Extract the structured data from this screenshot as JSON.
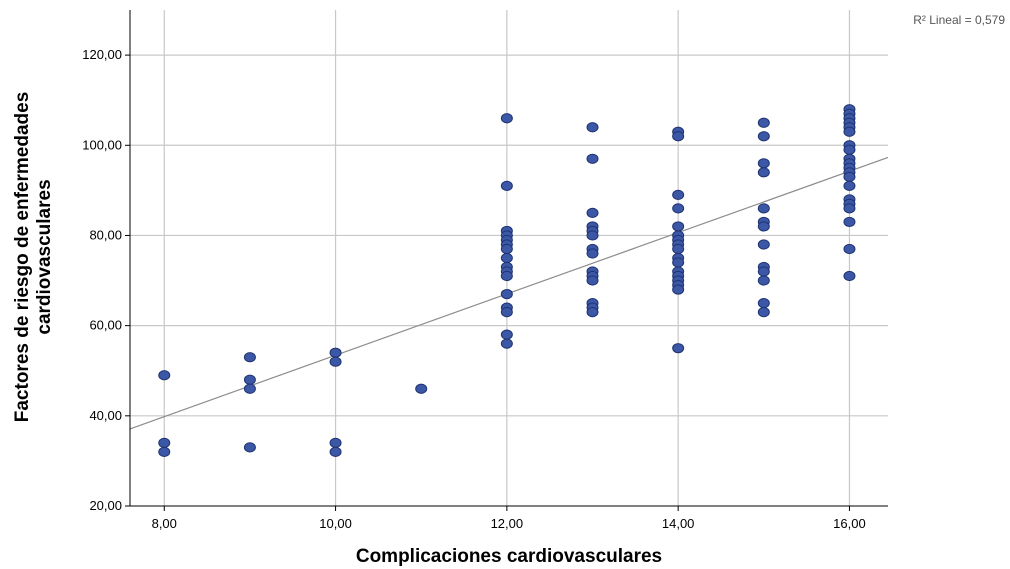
{
  "chart_data": {
    "type": "scatter",
    "xlabel": "Complicaciones cardiovasculares",
    "ylabel_lines": [
      "Factores de riesgo de enfermedades",
      "cardiovasculares"
    ],
    "xlim": [
      7.6,
      16.45
    ],
    "ylim": [
      20,
      130
    ],
    "x_ticks": [
      8,
      10,
      12,
      14,
      16
    ],
    "x_tick_labels": [
      "8,00",
      "10,00",
      "12,00",
      "14,00",
      "16,00"
    ],
    "y_ticks": [
      20,
      40,
      60,
      80,
      100,
      120
    ],
    "y_tick_labels": [
      "20,00",
      "40,00",
      "60,00",
      "80,00",
      "100,00",
      "120,00"
    ],
    "grid": true,
    "annotation": "R² Lineal = 0,579",
    "fit_line": {
      "x": [
        7.6,
        16.45
      ],
      "y": [
        37.1,
        97.3
      ]
    },
    "colors": {
      "marker_fill": "#3b57a6",
      "marker_stroke": "#1f3370",
      "grid": "#c8c8c8",
      "fit_line": "#8c8c8c",
      "axis": "#000000"
    },
    "points": [
      {
        "x": 8,
        "y": 49
      },
      {
        "x": 8,
        "y": 34
      },
      {
        "x": 8,
        "y": 32
      },
      {
        "x": 9,
        "y": 53
      },
      {
        "x": 9,
        "y": 48
      },
      {
        "x": 9,
        "y": 46
      },
      {
        "x": 9,
        "y": 33
      },
      {
        "x": 10,
        "y": 54
      },
      {
        "x": 10,
        "y": 52
      },
      {
        "x": 10,
        "y": 34
      },
      {
        "x": 10,
        "y": 32
      },
      {
        "x": 11,
        "y": 46
      },
      {
        "x": 12,
        "y": 106
      },
      {
        "x": 12,
        "y": 91
      },
      {
        "x": 12,
        "y": 81
      },
      {
        "x": 12,
        "y": 80
      },
      {
        "x": 12,
        "y": 79
      },
      {
        "x": 12,
        "y": 78
      },
      {
        "x": 12,
        "y": 77
      },
      {
        "x": 12,
        "y": 75
      },
      {
        "x": 12,
        "y": 73
      },
      {
        "x": 12,
        "y": 72
      },
      {
        "x": 12,
        "y": 71
      },
      {
        "x": 12,
        "y": 67
      },
      {
        "x": 12,
        "y": 64
      },
      {
        "x": 12,
        "y": 63
      },
      {
        "x": 12,
        "y": 58
      },
      {
        "x": 12,
        "y": 56
      },
      {
        "x": 13,
        "y": 104
      },
      {
        "x": 13,
        "y": 97
      },
      {
        "x": 13,
        "y": 85
      },
      {
        "x": 13,
        "y": 82
      },
      {
        "x": 13,
        "y": 81
      },
      {
        "x": 13,
        "y": 80
      },
      {
        "x": 13,
        "y": 77
      },
      {
        "x": 13,
        "y": 76
      },
      {
        "x": 13,
        "y": 72
      },
      {
        "x": 13,
        "y": 71
      },
      {
        "x": 13,
        "y": 70
      },
      {
        "x": 13,
        "y": 65
      },
      {
        "x": 13,
        "y": 64
      },
      {
        "x": 13,
        "y": 63
      },
      {
        "x": 14,
        "y": 103
      },
      {
        "x": 14,
        "y": 102
      },
      {
        "x": 14,
        "y": 89
      },
      {
        "x": 14,
        "y": 86
      },
      {
        "x": 14,
        "y": 82
      },
      {
        "x": 14,
        "y": 80
      },
      {
        "x": 14,
        "y": 79
      },
      {
        "x": 14,
        "y": 78
      },
      {
        "x": 14,
        "y": 77
      },
      {
        "x": 14,
        "y": 75
      },
      {
        "x": 14,
        "y": 74
      },
      {
        "x": 14,
        "y": 72
      },
      {
        "x": 14,
        "y": 71
      },
      {
        "x": 14,
        "y": 70
      },
      {
        "x": 14,
        "y": 69
      },
      {
        "x": 14,
        "y": 68
      },
      {
        "x": 14,
        "y": 55
      },
      {
        "x": 15,
        "y": 105
      },
      {
        "x": 15,
        "y": 102
      },
      {
        "x": 15,
        "y": 96
      },
      {
        "x": 15,
        "y": 94
      },
      {
        "x": 15,
        "y": 86
      },
      {
        "x": 15,
        "y": 83
      },
      {
        "x": 15,
        "y": 82
      },
      {
        "x": 15,
        "y": 78
      },
      {
        "x": 15,
        "y": 73
      },
      {
        "x": 15,
        "y": 72
      },
      {
        "x": 15,
        "y": 70
      },
      {
        "x": 15,
        "y": 65
      },
      {
        "x": 15,
        "y": 63
      },
      {
        "x": 16,
        "y": 108
      },
      {
        "x": 16,
        "y": 107
      },
      {
        "x": 16,
        "y": 106
      },
      {
        "x": 16,
        "y": 105
      },
      {
        "x": 16,
        "y": 104
      },
      {
        "x": 16,
        "y": 103
      },
      {
        "x": 16,
        "y": 100
      },
      {
        "x": 16,
        "y": 99
      },
      {
        "x": 16,
        "y": 97
      },
      {
        "x": 16,
        "y": 96
      },
      {
        "x": 16,
        "y": 95
      },
      {
        "x": 16,
        "y": 94
      },
      {
        "x": 16,
        "y": 93
      },
      {
        "x": 16,
        "y": 91
      },
      {
        "x": 16,
        "y": 88
      },
      {
        "x": 16,
        "y": 87
      },
      {
        "x": 16,
        "y": 86
      },
      {
        "x": 16,
        "y": 83
      },
      {
        "x": 16,
        "y": 77
      },
      {
        "x": 16,
        "y": 71
      }
    ]
  }
}
